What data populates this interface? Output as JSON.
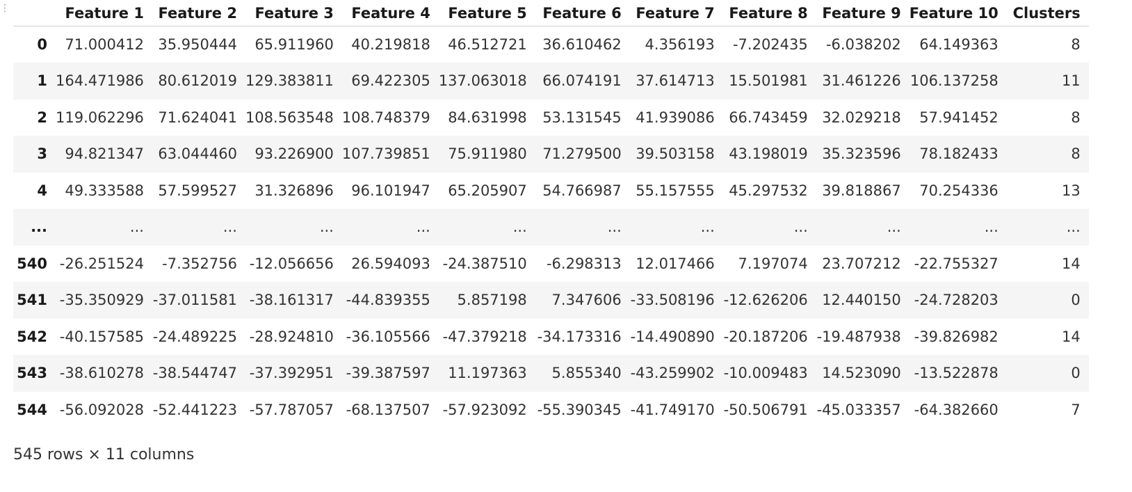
{
  "dataframe": {
    "index_header": "",
    "columns": [
      "Feature 1",
      "Feature 2",
      "Feature 3",
      "Feature 4",
      "Feature 5",
      "Feature 6",
      "Feature 7",
      "Feature 8",
      "Feature 9",
      "Feature 10",
      "Clusters"
    ],
    "rows": [
      {
        "index": "0",
        "cells": [
          "71.000412",
          "35.950444",
          "65.911960",
          "40.219818",
          "46.512721",
          "36.610462",
          "4.356193",
          "-7.202435",
          "-6.038202",
          "64.149363",
          "8"
        ]
      },
      {
        "index": "1",
        "cells": [
          "164.471986",
          "80.612019",
          "129.383811",
          "69.422305",
          "137.063018",
          "66.074191",
          "37.614713",
          "15.501981",
          "31.461226",
          "106.137258",
          "11"
        ]
      },
      {
        "index": "2",
        "cells": [
          "119.062296",
          "71.624041",
          "108.563548",
          "108.748379",
          "84.631998",
          "53.131545",
          "41.939086",
          "66.743459",
          "32.029218",
          "57.941452",
          "8"
        ]
      },
      {
        "index": "3",
        "cells": [
          "94.821347",
          "63.044460",
          "93.226900",
          "107.739851",
          "75.911980",
          "71.279500",
          "39.503158",
          "43.198019",
          "35.323596",
          "78.182433",
          "8"
        ]
      },
      {
        "index": "4",
        "cells": [
          "49.333588",
          "57.599527",
          "31.326896",
          "96.101947",
          "65.205907",
          "54.766987",
          "55.157555",
          "45.297532",
          "39.818867",
          "70.254336",
          "13"
        ]
      },
      {
        "index": "...",
        "cells": [
          "...",
          "...",
          "...",
          "...",
          "...",
          "...",
          "...",
          "...",
          "...",
          "...",
          "..."
        ]
      },
      {
        "index": "540",
        "cells": [
          "-26.251524",
          "-7.352756",
          "-12.056656",
          "26.594093",
          "-24.387510",
          "-6.298313",
          "12.017466",
          "7.197074",
          "23.707212",
          "-22.755327",
          "14"
        ]
      },
      {
        "index": "541",
        "cells": [
          "-35.350929",
          "-37.011581",
          "-38.161317",
          "-44.839355",
          "5.857198",
          "7.347606",
          "-33.508196",
          "-12.626206",
          "12.440150",
          "-24.728203",
          "0"
        ]
      },
      {
        "index": "542",
        "cells": [
          "-40.157585",
          "-24.489225",
          "-28.924810",
          "-36.105566",
          "-47.379218",
          "-34.173316",
          "-14.490890",
          "-20.187206",
          "-19.487938",
          "-39.826982",
          "14"
        ]
      },
      {
        "index": "543",
        "cells": [
          "-38.610278",
          "-38.544747",
          "-37.392951",
          "-39.387597",
          "11.197363",
          "5.855340",
          "-43.259902",
          "-10.009483",
          "14.523090",
          "-13.522878",
          "0"
        ]
      },
      {
        "index": "544",
        "cells": [
          "-56.092028",
          "-52.441223",
          "-57.787057",
          "-68.137507",
          "-57.923092",
          "-55.390345",
          "-41.749170",
          "-50.506791",
          "-45.033357",
          "-64.382660",
          "7"
        ]
      }
    ]
  },
  "shape_caption": "545 rows × 11 columns",
  "icons": {
    "drag_handle": "vertical-dots-icon"
  },
  "colors": {
    "stripe": "#f5f5f5",
    "header_border": "#d0d0d0"
  }
}
